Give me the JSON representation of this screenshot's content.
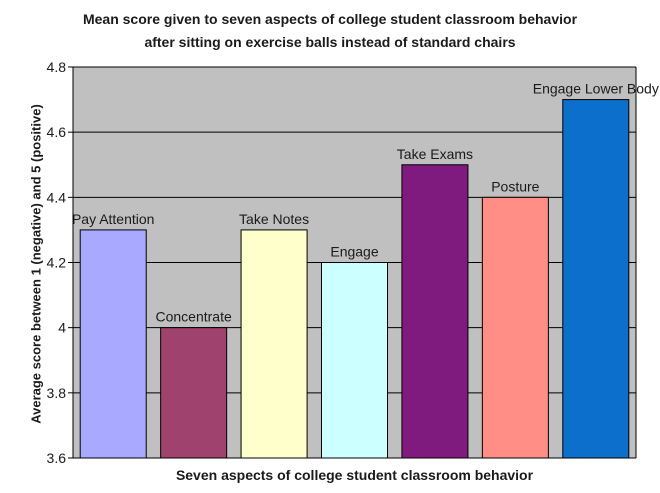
{
  "chart_data": {
    "type": "bar",
    "title_lines": [
      "Mean score given to seven aspects of college student classroom behavior",
      "after sitting on exercise balls instead of standard chairs"
    ],
    "xlabel": "Seven aspects of college student classroom behavior",
    "ylabel": "Average score between 1 (negative) and 5 (positive)",
    "ylim": [
      3.6,
      4.8
    ],
    "yticks": [
      3.6,
      3.8,
      4,
      4.2,
      4.4,
      4.6,
      4.8
    ],
    "ytick_labels": [
      "3.6",
      "3.8",
      "4",
      "4.2",
      "4.4",
      "4.6",
      "4.8"
    ],
    "grid": true,
    "background": "#c0c0c0",
    "categories": [
      "Pay Attention",
      "Concentrate",
      "Take Notes",
      "Engage",
      "Take Exams",
      "Posture",
      "Engage Lower Body"
    ],
    "values": [
      4.3,
      4.0,
      4.3,
      4.2,
      4.5,
      4.4,
      4.7
    ],
    "colors": [
      "#a9a9ff",
      "#a0426e",
      "#ffffcc",
      "#ccffff",
      "#7f1a7f",
      "#ff8f86",
      "#0c6fcc"
    ]
  }
}
